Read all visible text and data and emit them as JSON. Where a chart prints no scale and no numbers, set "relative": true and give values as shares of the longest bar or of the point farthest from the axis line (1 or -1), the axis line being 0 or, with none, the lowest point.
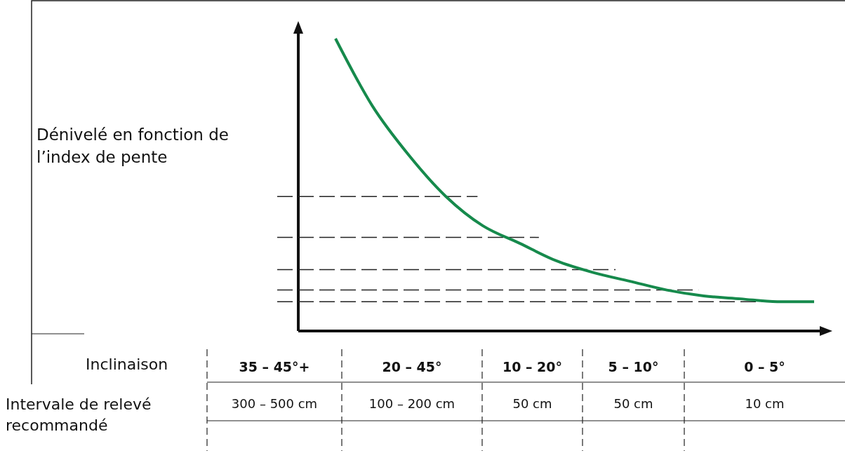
{
  "chart_data": {
    "type": "line",
    "relative": true,
    "tick_labels": false,
    "ylabel": "Dénivelé en fonction de l’index de pente",
    "categories": [
      null,
      null,
      null,
      null,
      null,
      null,
      null,
      null,
      null,
      null,
      null,
      null,
      null,
      null
    ],
    "series": [
      {
        "color": "#168a4c",
        "values": [
          1.0,
          0.77,
          0.6,
          0.46,
          0.36,
          0.3,
          0.24,
          0.2,
          0.17,
          0.14,
          0.12,
          0.11,
          0.1,
          0.1
        ]
      }
    ],
    "line_style": "solid",
    "marker": "none",
    "ref_lines": [
      {
        "axis": "y",
        "value": 0.46,
        "line_style": "dashed",
        "color": "#222222"
      },
      {
        "axis": "y",
        "value": 0.32,
        "line_style": "dashed",
        "color": "#222222"
      },
      {
        "axis": "y",
        "value": 0.21,
        "line_style": "dashed",
        "color": "#222222"
      },
      {
        "axis": "y",
        "value": 0.14,
        "line_style": "dashed",
        "color": "#222222"
      },
      {
        "axis": "y",
        "value": 0.1,
        "line_style": "dashed",
        "color": "#222222"
      }
    ],
    "annotations": [
      "Inclinaison",
      "Intervale de relevé recommandé",
      "35 – 45°+",
      "20 – 45°",
      "10 – 20°",
      "5 – 10°",
      "0 – 5°",
      "300 – 500 cm",
      "100 – 200 cm",
      "50 cm",
      "50 cm",
      "10 cm"
    ]
  }
}
